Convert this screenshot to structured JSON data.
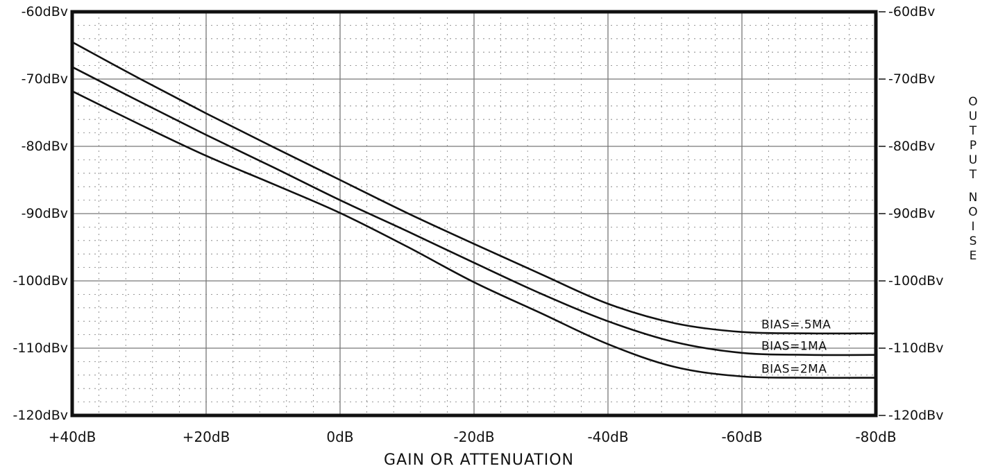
{
  "chart_data": {
    "type": "line",
    "title": "",
    "xlabel": "GAIN OR ATTENUATION",
    "ylabel_right": "OUTPUT NOISE",
    "x_ticks": [
      {
        "value": 40,
        "label": "+40dB"
      },
      {
        "value": 20,
        "label": "+20dB"
      },
      {
        "value": 0,
        "label": "0dB"
      },
      {
        "value": -20,
        "label": "-20dB"
      },
      {
        "value": -40,
        "label": "-40dB"
      },
      {
        "value": -60,
        "label": "-60dB"
      },
      {
        "value": -80,
        "label": "-80dB"
      }
    ],
    "y_ticks_left": [
      {
        "value": -60,
        "label": "-60dBv"
      },
      {
        "value": -70,
        "label": "-70dBv"
      },
      {
        "value": -80,
        "label": "-80dBv"
      },
      {
        "value": -90,
        "label": "-90dBv"
      },
      {
        "value": -100,
        "label": "-100dBv"
      },
      {
        "value": -110,
        "label": "-110dBv"
      },
      {
        "value": -120,
        "label": "-120dBv"
      }
    ],
    "y_ticks_right": [
      {
        "value": -60,
        "label": "-60dBv"
      },
      {
        "value": -70,
        "label": "-70dBv"
      },
      {
        "value": -80,
        "label": "-80dBv"
      },
      {
        "value": -90,
        "label": "-90dBv"
      },
      {
        "value": -100,
        "label": "-100dBv"
      },
      {
        "value": -110,
        "label": "-110dBv"
      },
      {
        "value": -120,
        "label": "-120dBv"
      }
    ],
    "xlim": [
      40,
      -80
    ],
    "ylim": [
      -120,
      -60
    ],
    "grid": true,
    "series": [
      {
        "name": "BIAS=.5MA",
        "x": [
          40,
          30,
          20,
          10,
          0,
          -10,
          -20,
          -30,
          -40,
          -50,
          -60,
          -70,
          -80
        ],
        "y": [
          -64.5,
          -69.9,
          -75.1,
          -80.1,
          -85.0,
          -89.9,
          -94.5,
          -99.0,
          -103.4,
          -106.3,
          -107.6,
          -107.8,
          -107.8
        ]
      },
      {
        "name": "BIAS=1MA",
        "x": [
          40,
          30,
          20,
          10,
          0,
          -10,
          -20,
          -30,
          -40,
          -50,
          -60,
          -70,
          -80
        ],
        "y": [
          -68.2,
          -73.3,
          -78.3,
          -83.1,
          -88.0,
          -92.6,
          -97.3,
          -101.9,
          -106.0,
          -109.1,
          -110.7,
          -111.0,
          -111.0
        ]
      },
      {
        "name": "BIAS=2MA",
        "x": [
          40,
          30,
          20,
          10,
          0,
          -10,
          -20,
          -30,
          -40,
          -50,
          -60,
          -70,
          -80
        ],
        "y": [
          -71.8,
          -76.7,
          -81.4,
          -85.6,
          -89.9,
          -94.9,
          -100.2,
          -104.8,
          -109.4,
          -112.8,
          -114.2,
          -114.4,
          -114.4
        ]
      }
    ],
    "colors": {
      "line": "#111111",
      "grid": "#777777",
      "background": "#ffffff"
    }
  }
}
